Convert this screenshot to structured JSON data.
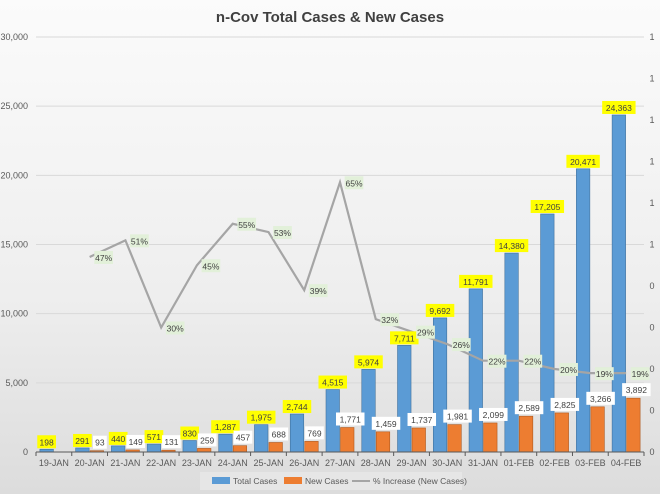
{
  "chart_data": {
    "type": "bar",
    "title": "n-Cov Total Cases & New Cases",
    "categories": [
      "19-JAN",
      "20-JAN",
      "21-JAN",
      "22-JAN",
      "23-JAN",
      "24-JAN",
      "25-JAN",
      "26-JAN",
      "27-JAN",
      "28-JAN",
      "29-JAN",
      "30-JAN",
      "31-JAN",
      "01-FEB",
      "02-FEB",
      "03-FEB",
      "04-FEB"
    ],
    "series": [
      {
        "name": "Total Cases",
        "type": "bar",
        "axis": "left",
        "color": "#5B9BD5",
        "values": [
          198,
          291,
          440,
          571,
          830,
          1287,
          1975,
          2744,
          4515,
          5974,
          7711,
          9692,
          11791,
          14380,
          17205,
          20471,
          24363
        ]
      },
      {
        "name": "New Cases",
        "type": "bar",
        "axis": "left",
        "color": "#ED7D31",
        "values": [
          null,
          93,
          149,
          131,
          259,
          457,
          688,
          769,
          1771,
          1459,
          1737,
          1981,
          2099,
          2589,
          2825,
          3266,
          3892
        ]
      },
      {
        "name": "% Increase (New Cases)",
        "type": "line",
        "axis": "right",
        "color": "#A5A5A5",
        "values": [
          null,
          0.47,
          0.51,
          0.3,
          0.45,
          0.55,
          0.53,
          0.39,
          0.65,
          0.32,
          0.29,
          0.26,
          0.22,
          0.22,
          0.2,
          0.19,
          0.19
        ]
      }
    ],
    "left_axis": {
      "ylim": [
        0,
        30000
      ],
      "ticks": [
        "0",
        "5,000",
        "10,000",
        "15,000",
        "20,000",
        "25,000",
        "30,000"
      ]
    },
    "right_axis": {
      "ylim": [
        0,
        1
      ],
      "ticks": [
        "0",
        "0",
        "0",
        "0",
        "0",
        "1",
        "1",
        "1",
        "1",
        "1",
        "1"
      ]
    },
    "grid": true,
    "legend": "bottom",
    "label_colors": {
      "total": "#FFFF00",
      "new": "#FFFFFF",
      "pct": "#E2F0D9"
    }
  }
}
